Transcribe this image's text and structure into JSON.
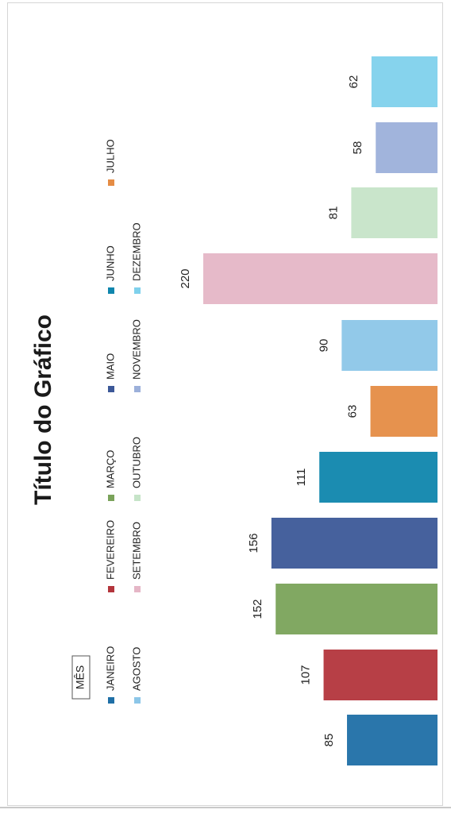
{
  "chart_data": {
    "type": "bar",
    "orientation": "vertical-rotated-page",
    "title": "Título do Gráfico",
    "legend_title": "MÊS",
    "legend_placement": "left",
    "categories": [
      "JANEIRO",
      "FEVEREIRO",
      "MARÇO",
      "MAIO",
      "JUNHO",
      "JULHO",
      "AGOSTO",
      "SETEMBRO",
      "OUTUBRO",
      "NOVEMBRO",
      "DEZEMBRO"
    ],
    "values": [
      85,
      107,
      152,
      156,
      111,
      63,
      90,
      220,
      81,
      58,
      62
    ],
    "colors": [
      "#1f6fa6",
      "#b3353c",
      "#7aa35a",
      "#3c5898",
      "#0f86ad",
      "#e58c45",
      "#8cc6e8",
      "#e5b6c6",
      "#c6e4c8",
      "#9cb0da",
      "#7fd1ec"
    ],
    "value_max": 220,
    "grid": false,
    "ylim": [
      0,
      240
    ]
  }
}
